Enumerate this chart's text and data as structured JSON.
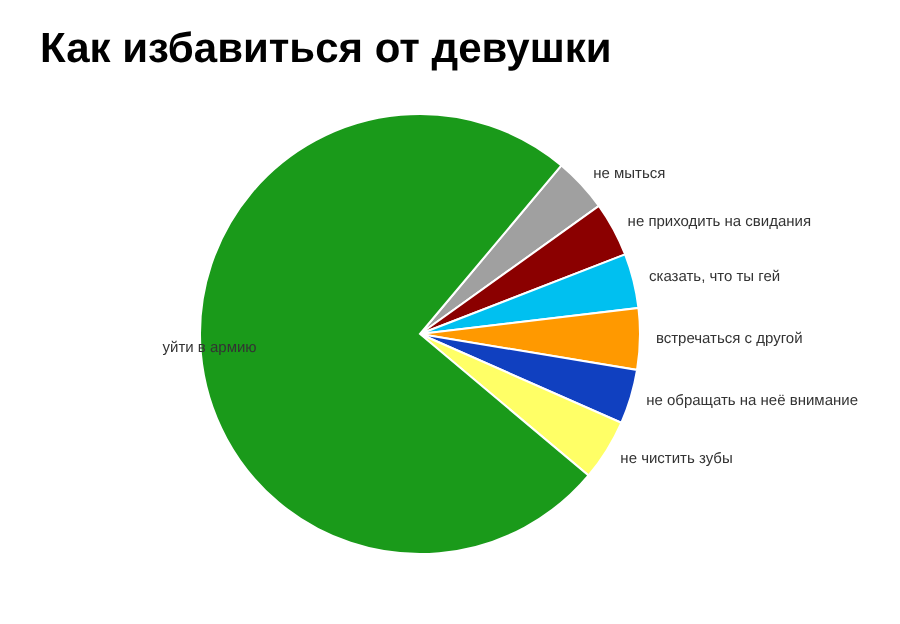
{
  "chart_data": {
    "type": "pie",
    "title": "Как избавиться от девушки",
    "categories": [
      "не мыться",
      "не приходить на свидания",
      "сказать, что ты гей",
      "встречаться с другой",
      "не обращать на неё внимание",
      "не чистить зубы",
      "уйти в армию"
    ],
    "values": [
      4,
      4,
      4,
      4.5,
      4,
      4.5,
      75
    ],
    "colors": [
      "#a0a0a0",
      "#8b0000",
      "#00c0f0",
      "#ff9900",
      "#1040c0",
      "#ffff66",
      "#1a9a1a"
    ]
  }
}
